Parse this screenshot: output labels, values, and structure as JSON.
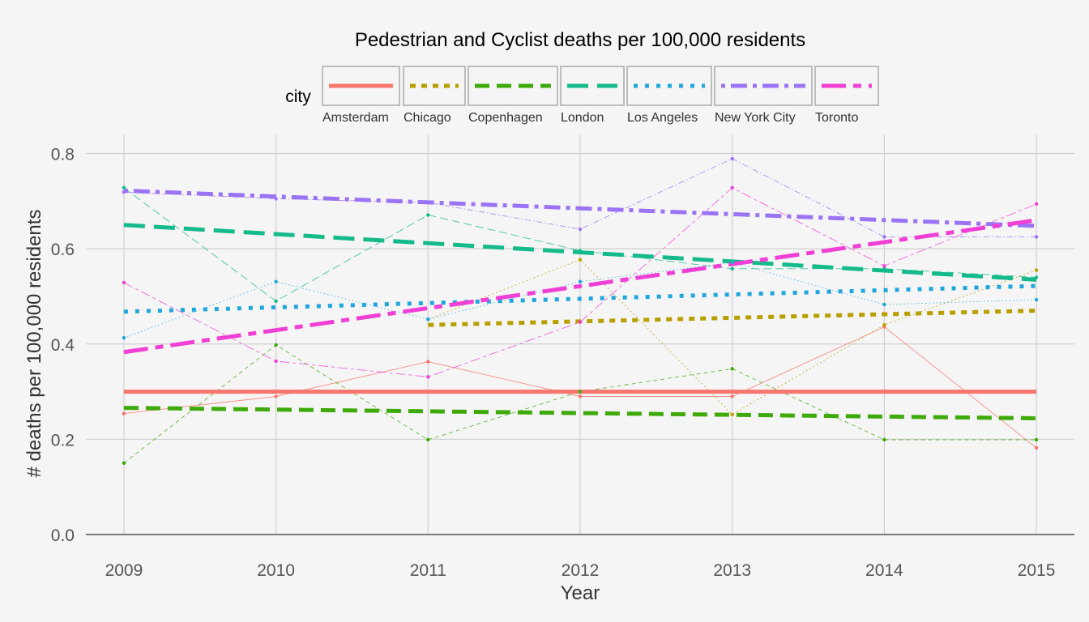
{
  "chart_data": {
    "type": "line",
    "title": "Pedestrian and Cyclist deaths per 100,000 residents",
    "xlabel": "Year",
    "ylabel": "# deaths per 100,000 residents",
    "legend_title": "city",
    "legend_position": "top",
    "grid": true,
    "x": [
      2009,
      2010,
      2011,
      2012,
      2013,
      2014,
      2015
    ],
    "x_ticks": [
      "2009",
      "2010",
      "2011",
      "2012",
      "2013",
      "2014",
      "2015"
    ],
    "xlim": [
      2008.75,
      2015.25
    ],
    "ylim": [
      0,
      0.84
    ],
    "y_ticks": [
      "0.0",
      "0.2",
      "0.4",
      "0.6",
      "0.8"
    ],
    "y_tick_values": [
      0,
      0.2,
      0.4,
      0.6,
      0.8
    ],
    "series": [
      {
        "name": "Amsterdam",
        "color": "#F8766D",
        "dash": "solid",
        "values": [
          0.254,
          0.29,
          0.363,
          0.29,
          0.29,
          0.436,
          0.182
        ],
        "trend": [
          0.3,
          0.3
        ]
      },
      {
        "name": "Chicago",
        "color": "#B79F00",
        "dash": "dotted",
        "values": [
          null,
          null,
          0.452,
          0.577,
          0.252,
          0.44,
          0.555
        ],
        "trend": [
          0.44,
          0.47
        ],
        "trend_start": 2011
      },
      {
        "name": "Copenhagen",
        "color": "#3EAA0A",
        "dash": "dashed",
        "values": [
          0.15,
          0.398,
          0.199,
          0.3,
          0.348,
          0.199,
          0.199
        ],
        "trend": [
          0.266,
          0.244
        ]
      },
      {
        "name": "London",
        "color": "#15BA8A",
        "dash": "longdash",
        "values": [
          0.728,
          0.49,
          0.671,
          0.596,
          0.558,
          0.558,
          0.54
        ],
        "trend": [
          0.65,
          0.535
        ]
      },
      {
        "name": "Los Angeles",
        "color": "#1FA6DD",
        "dash": "dotted-fine",
        "values": [
          0.413,
          0.531,
          0.452,
          0.531,
          0.571,
          0.483,
          0.493
        ],
        "trend": [
          0.468,
          0.522
        ]
      },
      {
        "name": "New York City",
        "color": "#9B73F5",
        "dash": "dotdash",
        "values": [
          0.719,
          0.705,
          0.697,
          0.641,
          0.789,
          0.625,
          0.625
        ],
        "trend": [
          0.722,
          0.648
        ]
      },
      {
        "name": "Toronto",
        "color": "#F03FD5",
        "dash": "twodash",
        "values": [
          0.529,
          0.364,
          0.331,
          0.446,
          0.728,
          0.564,
          0.694
        ],
        "trend": [
          0.383,
          0.66
        ]
      }
    ]
  }
}
